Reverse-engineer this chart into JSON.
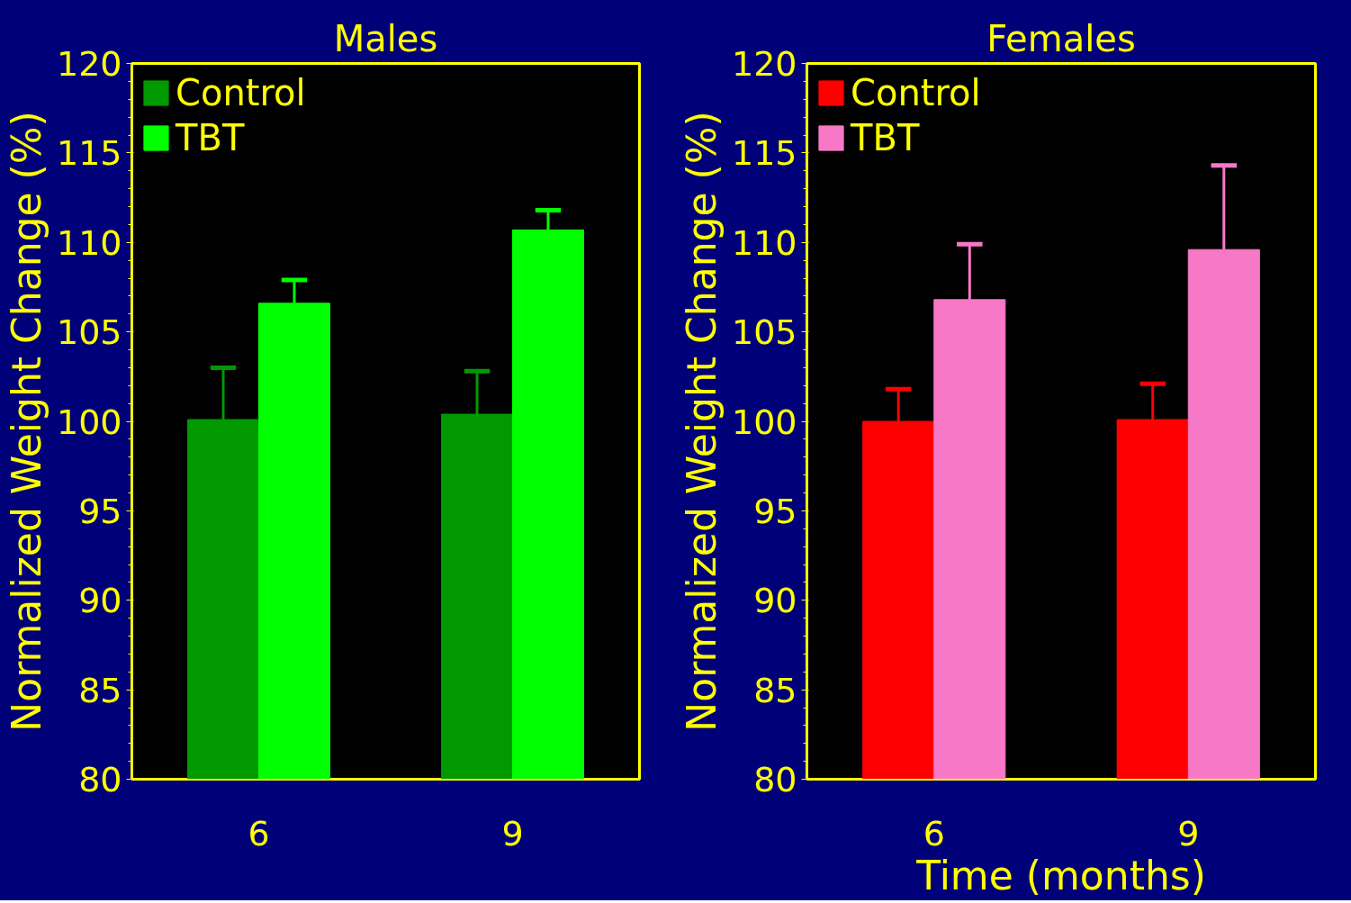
{
  "chart_data": [
    {
      "type": "bar",
      "title": "Males",
      "ylabel": "Normalized Weight Change (%)",
      "categories": [
        "6",
        "9"
      ],
      "series": [
        {
          "name": "Control",
          "color": "#009900",
          "values": [
            100.1,
            100.4
          ],
          "errors": [
            [
              100.1,
              103.0
            ],
            [
              100.4,
              102.8
            ]
          ]
        },
        {
          "name": "TBT",
          "color": "#00ff00",
          "values": [
            106.6,
            110.7
          ],
          "errors": [
            [
              106.6,
              107.9
            ],
            [
              110.7,
              111.8
            ]
          ]
        }
      ],
      "ylim": [
        80,
        120
      ],
      "yticks": [
        80,
        85,
        90,
        95,
        100,
        105,
        110,
        115,
        120
      ],
      "grid": false,
      "legend": "top left"
    },
    {
      "type": "bar",
      "title": "Females",
      "ylabel": "Normalized Weight Change (%)",
      "xlabel": "Time (months)",
      "categories": [
        "6",
        "9"
      ],
      "series": [
        {
          "name": "Control",
          "color": "#ff0000",
          "values": [
            100.0,
            100.1
          ],
          "errors": [
            [
              100.0,
              101.8
            ],
            [
              100.1,
              102.1
            ]
          ]
        },
        {
          "name": "TBT",
          "color": "#f878c8",
          "values": [
            106.8,
            109.6
          ],
          "errors": [
            [
              106.8,
              109.9
            ],
            [
              109.6,
              114.3
            ]
          ]
        }
      ],
      "ylim": [
        80,
        120
      ],
      "yticks": [
        80,
        85,
        90,
        95,
        100,
        105,
        110,
        115,
        120
      ],
      "grid": false,
      "legend": "top left"
    }
  ]
}
